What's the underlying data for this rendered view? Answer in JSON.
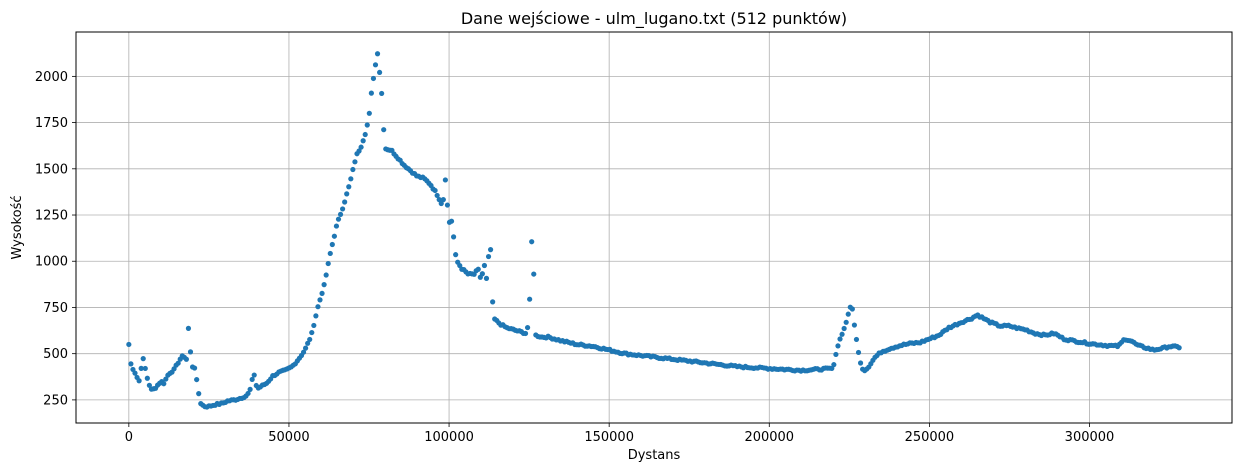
{
  "chart_data": {
    "type": "scatter",
    "title": "Dane wejściowe - ulm_lugano.txt (512 punktów)",
    "xlabel": "Dystans",
    "ylabel": "Wysokość",
    "xlim": [
      -16500,
      344500
    ],
    "ylim": [
      125,
      2240
    ],
    "xticks": [
      0,
      50000,
      100000,
      150000,
      200000,
      250000,
      300000
    ],
    "xtick_labels": [
      "0",
      "50000",
      "100000",
      "150000",
      "200000",
      "250000",
      "300000"
    ],
    "yticks": [
      250,
      500,
      750,
      1000,
      1250,
      1500,
      1750,
      2000
    ],
    "ytick_labels": [
      "250",
      "500",
      "750",
      "1000",
      "1250",
      "1500",
      "1750",
      "2000"
    ],
    "grid": true,
    "color": "#1f77b4",
    "x_start": 0,
    "x_end": 328000,
    "point_count": 512,
    "profile": [
      [
        0,
        550
      ],
      [
        500,
        450
      ],
      [
        1500,
        410
      ],
      [
        2500,
        380
      ],
      [
        3000,
        320
      ],
      [
        3500,
        400
      ],
      [
        4500,
        470
      ],
      [
        5000,
        430
      ],
      [
        6000,
        350
      ],
      [
        7000,
        305
      ],
      [
        8000,
        310
      ],
      [
        9000,
        330
      ],
      [
        10000,
        350
      ],
      [
        11000,
        340
      ],
      [
        12000,
        380
      ],
      [
        13000,
        400
      ],
      [
        14000,
        410
      ],
      [
        15000,
        440
      ],
      [
        16000,
        470
      ],
      [
        17000,
        490
      ],
      [
        18000,
        470
      ],
      [
        18500,
        650
      ],
      [
        19000,
        590
      ],
      [
        19500,
        430
      ],
      [
        20500,
        430
      ],
      [
        21500,
        320
      ],
      [
        22000,
        265
      ],
      [
        22500,
        230
      ],
      [
        23500,
        215
      ],
      [
        25000,
        215
      ],
      [
        27000,
        225
      ],
      [
        29000,
        230
      ],
      [
        31000,
        245
      ],
      [
        33000,
        250
      ],
      [
        35000,
        260
      ],
      [
        37000,
        275
      ],
      [
        38000,
        310
      ],
      [
        39000,
        400
      ],
      [
        40000,
        310
      ],
      [
        41000,
        320
      ],
      [
        43000,
        340
      ],
      [
        45000,
        380
      ],
      [
        47000,
        400
      ],
      [
        49000,
        410
      ],
      [
        51000,
        430
      ],
      [
        53000,
        470
      ],
      [
        55000,
        520
      ],
      [
        57000,
        600
      ],
      [
        59000,
        750
      ],
      [
        61000,
        870
      ],
      [
        63000,
        1050
      ],
      [
        65000,
        1200
      ],
      [
        67000,
        1300
      ],
      [
        69000,
        1420
      ],
      [
        71000,
        1570
      ],
      [
        72500,
        1620
      ],
      [
        74000,
        1700
      ],
      [
        75000,
        1780
      ],
      [
        76000,
        1950
      ],
      [
        77000,
        2060
      ],
      [
        77800,
        2140
      ],
      [
        78500,
        1980
      ],
      [
        79000,
        1900
      ],
      [
        79500,
        1740
      ],
      [
        80000,
        1610
      ],
      [
        82000,
        1600
      ],
      [
        84000,
        1560
      ],
      [
        86000,
        1520
      ],
      [
        88000,
        1490
      ],
      [
        90000,
        1460
      ],
      [
        92000,
        1450
      ],
      [
        94000,
        1420
      ],
      [
        96000,
        1370
      ],
      [
        98000,
        1300
      ],
      [
        99000,
        1470
      ],
      [
        99500,
        1300
      ],
      [
        100000,
        1210
      ],
      [
        101000,
        1220
      ],
      [
        101800,
        1050
      ],
      [
        102500,
        1000
      ],
      [
        104000,
        960
      ],
      [
        106000,
        930
      ],
      [
        108000,
        930
      ],
      [
        109000,
        960
      ],
      [
        110000,
        900
      ],
      [
        111000,
        980
      ],
      [
        112000,
        870
      ],
      [
        112500,
        1100
      ],
      [
        113000,
        1060
      ],
      [
        113500,
        800
      ],
      [
        114000,
        690
      ],
      [
        116000,
        660
      ],
      [
        118000,
        640
      ],
      [
        120000,
        630
      ],
      [
        122000,
        620
      ],
      [
        124000,
        610
      ],
      [
        125000,
        670
      ],
      [
        125500,
        1030
      ],
      [
        126000,
        1150
      ],
      [
        126500,
        910
      ],
      [
        127000,
        600
      ],
      [
        129000,
        590
      ],
      [
        131000,
        590
      ],
      [
        135000,
        570
      ],
      [
        140000,
        550
      ],
      [
        145000,
        540
      ],
      [
        150000,
        520
      ],
      [
        155000,
        500
      ],
      [
        160000,
        490
      ],
      [
        170000,
        470
      ],
      [
        180000,
        450
      ],
      [
        190000,
        430
      ],
      [
        200000,
        420
      ],
      [
        210000,
        410
      ],
      [
        215000,
        415
      ],
      [
        220000,
        420
      ],
      [
        221000,
        520
      ],
      [
        222500,
        600
      ],
      [
        223500,
        640
      ],
      [
        224500,
        700
      ],
      [
        225000,
        750
      ],
      [
        226000,
        740
      ],
      [
        227000,
        600
      ],
      [
        228000,
        490
      ],
      [
        229000,
        420
      ],
      [
        230000,
        410
      ],
      [
        231000,
        430
      ],
      [
        233000,
        480
      ],
      [
        235000,
        510
      ],
      [
        238000,
        530
      ],
      [
        241000,
        545
      ],
      [
        244000,
        555
      ],
      [
        247000,
        560
      ],
      [
        250000,
        580
      ],
      [
        253000,
        600
      ],
      [
        256000,
        640
      ],
      [
        260000,
        670
      ],
      [
        263000,
        690
      ],
      [
        265000,
        710
      ],
      [
        267000,
        690
      ],
      [
        269000,
        670
      ],
      [
        272000,
        650
      ],
      [
        275000,
        650
      ],
      [
        277000,
        640
      ],
      [
        280000,
        630
      ],
      [
        283000,
        610
      ],
      [
        286000,
        600
      ],
      [
        289000,
        610
      ],
      [
        292000,
        580
      ],
      [
        295000,
        570
      ],
      [
        300000,
        555
      ],
      [
        305000,
        545
      ],
      [
        309000,
        540
      ],
      [
        311000,
        580
      ],
      [
        313000,
        570
      ],
      [
        315000,
        545
      ],
      [
        318000,
        530
      ],
      [
        320000,
        520
      ],
      [
        323000,
        530
      ],
      [
        325000,
        540
      ],
      [
        328000,
        535
      ]
    ]
  }
}
